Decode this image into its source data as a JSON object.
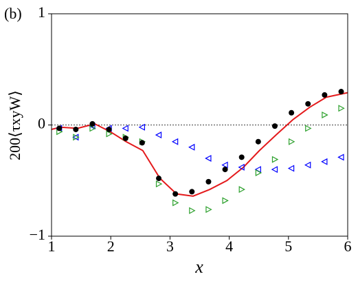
{
  "chart_data": {
    "type": "scatter",
    "panel_label": "(b)",
    "xlabel": "x",
    "ylabel": "200⟨τxyW⟩",
    "xlim": [
      1,
      6
    ],
    "xticks": [
      1,
      2,
      3,
      4,
      5,
      6
    ],
    "ylim": [
      -1,
      1
    ],
    "yticks": [
      {
        "value": -1,
        "label": "−1"
      },
      0,
      1
    ],
    "hline": 0,
    "series": [
      {
        "kind": "line",
        "color": "#e41a1c",
        "x": [
          1,
          1.15,
          1.44,
          1.73,
          1.99,
          2.26,
          2.54,
          2.83,
          3.11,
          3.39,
          3.67,
          3.96,
          4.24,
          4.51,
          4.79,
          5.08,
          5.36,
          5.64,
          6
        ],
        "values": [
          -0.04,
          -0.02,
          -0.03,
          0.01,
          -0.06,
          -0.15,
          -0.23,
          -0.48,
          -0.62,
          -0.64,
          -0.58,
          -0.5,
          -0.38,
          -0.23,
          -0.09,
          0.05,
          0.16,
          0.25,
          0.29
        ]
      },
      {
        "kind": "triangle-left",
        "color": "#0000ff",
        "x": [
          1.13,
          1.41,
          1.69,
          1.97,
          2.25,
          2.53,
          2.81,
          3.09,
          3.37,
          3.65,
          3.93,
          4.21,
          4.49,
          4.77,
          5.05,
          5.33,
          5.61,
          5.89
        ],
        "values": [
          -0.03,
          -0.11,
          -0.01,
          -0.03,
          -0.03,
          -0.02,
          -0.09,
          -0.15,
          -0.2,
          -0.3,
          -0.36,
          -0.38,
          -0.4,
          -0.4,
          -0.39,
          -0.36,
          -0.33,
          -0.29
        ]
      },
      {
        "kind": "triangle-right",
        "color": "#2ca02c",
        "x": [
          1.13,
          1.41,
          1.69,
          1.97,
          2.25,
          2.53,
          2.81,
          3.09,
          3.37,
          3.65,
          3.93,
          4.21,
          4.49,
          4.77,
          5.05,
          5.33,
          5.61,
          5.89
        ],
        "values": [
          -0.06,
          -0.11,
          -0.03,
          -0.08,
          -0.11,
          -0.15,
          -0.53,
          -0.7,
          -0.77,
          -0.76,
          -0.68,
          -0.58,
          -0.43,
          -0.31,
          -0.15,
          -0.03,
          0.09,
          0.15
        ]
      },
      {
        "kind": "dot",
        "color": "#000000",
        "x": [
          1.13,
          1.41,
          1.69,
          1.97,
          2.25,
          2.53,
          2.81,
          3.09,
          3.37,
          3.65,
          3.93,
          4.21,
          4.49,
          4.77,
          5.05,
          5.33,
          5.61,
          5.89
        ],
        "values": [
          -0.03,
          -0.04,
          0.01,
          -0.04,
          -0.12,
          -0.16,
          -0.48,
          -0.62,
          -0.6,
          -0.51,
          -0.4,
          -0.29,
          -0.15,
          -0.01,
          0.11,
          0.19,
          0.27,
          0.3
        ]
      }
    ]
  }
}
